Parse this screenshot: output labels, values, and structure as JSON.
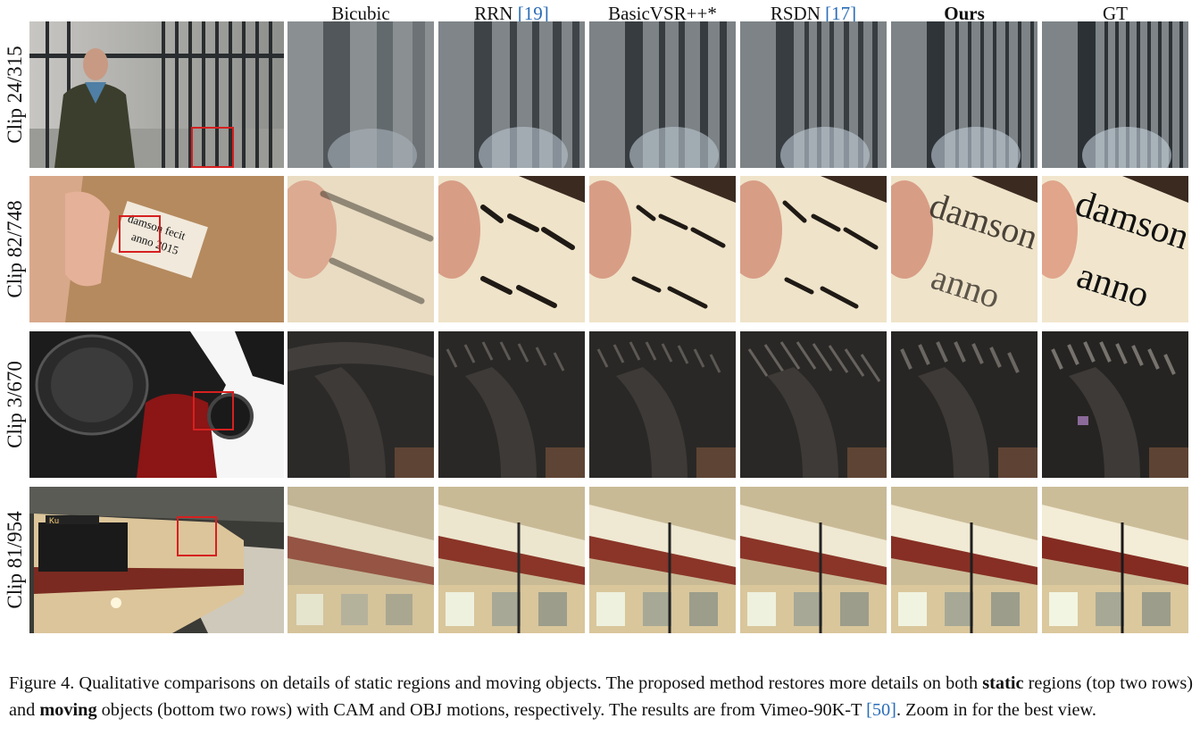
{
  "columns": [
    {
      "label": "Bicubic",
      "ref": ""
    },
    {
      "label": "RRN ",
      "ref": "[19]"
    },
    {
      "label": "BasicVSR++*",
      "ref": ""
    },
    {
      "label": "RSDN ",
      "ref": "[17]"
    },
    {
      "label": "Ours",
      "ref": ""
    },
    {
      "label": "GT",
      "ref": ""
    }
  ],
  "rows": [
    {
      "label": "Clip 24/315"
    },
    {
      "label": "Clip 82/748"
    },
    {
      "label": "Clip 3/670"
    },
    {
      "label": "Clip 81/954"
    }
  ],
  "caption": {
    "p1": "Figure 4.  Qualitative comparisons on details of static regions and moving objects.  The proposed method restores more details on both ",
    "static": "static",
    "p2": " regions (top two rows) and ",
    "moving": "moving",
    "p3": " objects (bottom two rows) with CAM and OBJ motions, respectively.  The results are from Vimeo-90K-T ",
    "ref": "[50]",
    "p4": ". Zoom in for the best view."
  },
  "label_text": {
    "sign_line1": "damson fecit",
    "sign_line2": "anno 2015",
    "crop_line1": "damson",
    "crop_line2": "anno",
    "train_sign": "Ku"
  },
  "colors": {
    "highlight_box": "#d62020",
    "reference_link": "#2a6db8"
  }
}
